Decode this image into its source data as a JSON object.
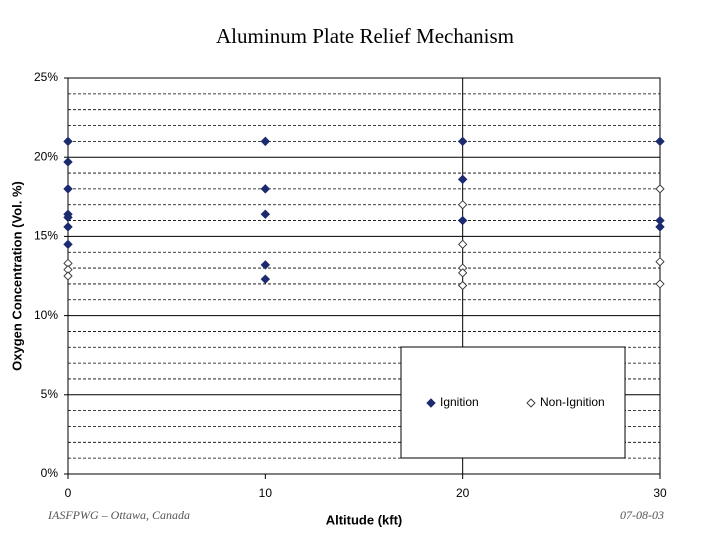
{
  "chart_data": {
    "type": "scatter",
    "title": "Aluminum Plate Relief Mechanism",
    "x_label": "Altitude (kft)",
    "y_label": "Oxygen Concentration (Vol. %)",
    "footer_left": "IASFPWG – Ottawa, Canada",
    "footer_right": "07-08-03",
    "xlim": [
      0,
      30
    ],
    "xticks": [
      0,
      10,
      20,
      30
    ],
    "xgrid": [
      20
    ],
    "ylim": [
      0,
      25
    ],
    "yticks": [
      {
        "value": 0,
        "label": "0%"
      },
      {
        "value": 5,
        "label": "5%"
      },
      {
        "value": 10,
        "label": "10%"
      },
      {
        "value": 15,
        "label": "15%"
      },
      {
        "value": 20,
        "label": "20%"
      },
      {
        "value": 25,
        "label": "25%"
      }
    ],
    "yminorticks": [
      1,
      2,
      3,
      4,
      6,
      7,
      8,
      9,
      11,
      12,
      13,
      14,
      16,
      17,
      18,
      19,
      21,
      22,
      23,
      24
    ],
    "series": [
      {
        "name": "Ignition",
        "color": "#1c2a6e",
        "marker": "filled",
        "x": [
          0,
          0,
          0,
          0,
          0,
          0,
          0,
          10,
          10,
          10,
          10,
          10,
          20,
          20,
          20,
          30,
          30,
          30
        ],
        "values": [
          21,
          19.7,
          18,
          16.4,
          16.2,
          15.6,
          14.5,
          21,
          18,
          16.4,
          13.2,
          12.3,
          21,
          18.6,
          16,
          21,
          16,
          15.6
        ]
      },
      {
        "name": "Non-Ignition",
        "color": "#333333",
        "marker": "open",
        "x": [
          0,
          0,
          0,
          20,
          20,
          20,
          20,
          20,
          30,
          30,
          30
        ],
        "values": [
          13.3,
          12.9,
          12.5,
          17,
          14.5,
          13,
          12.7,
          11.9,
          18,
          13.4,
          12
        ]
      }
    ]
  }
}
